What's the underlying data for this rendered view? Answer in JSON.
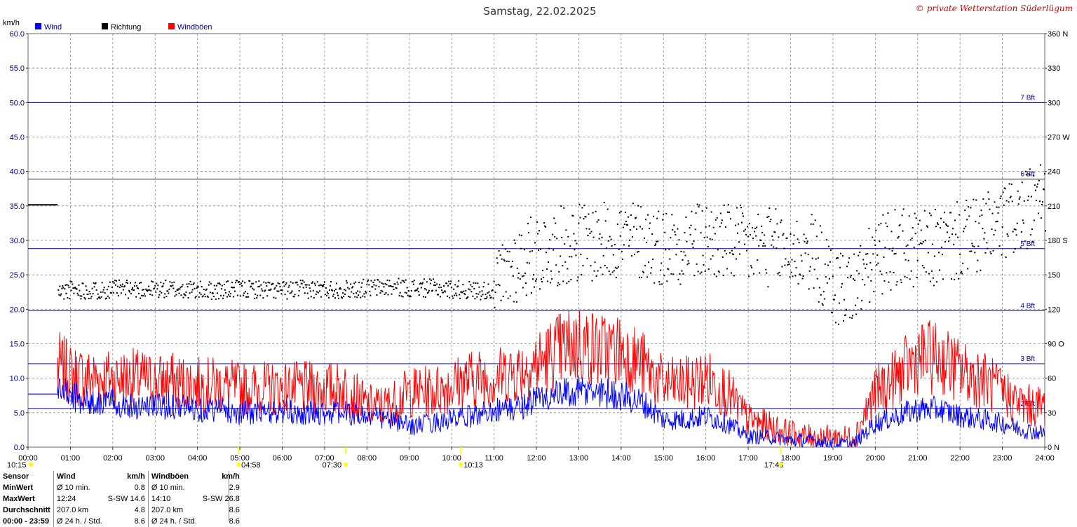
{
  "header": {
    "title": "Samstag, 22.02.2025",
    "copyright": "© private Wetterstation Süderlügum",
    "left_unit": "km/h"
  },
  "legend": [
    {
      "label": "Wind",
      "color": "#0000ff"
    },
    {
      "label": "Richtung",
      "color": "#000000"
    },
    {
      "label": "Windböen",
      "color": "#ff0000"
    }
  ],
  "colors": {
    "wind": "#0000ff",
    "gust": "#ff0000",
    "direction": "#000000",
    "bft": "#0000a0",
    "grid": "#888888",
    "marker": "#ffff00"
  },
  "chart_data": {
    "type": "line",
    "title": "Samstag, 22.02.2025",
    "ylabel": "km/h",
    "ylim": [
      0,
      60
    ],
    "y2lim": [
      0,
      360
    ],
    "xlim_hours": [
      0,
      24
    ],
    "grid": true,
    "y_ticks": [
      "0.0",
      "5.0",
      "10.0",
      "15.0",
      "20.0",
      "25.0",
      "30.0",
      "35.0",
      "40.0",
      "45.0",
      "50.0",
      "55.0",
      "60.0"
    ],
    "y2_ticks": [
      "0 N",
      "30",
      "60",
      "90 O",
      "120",
      "150",
      "180 S",
      "210",
      "240",
      "270 W",
      "300",
      "330",
      "360 N"
    ],
    "x_ticks": [
      "00:00",
      "01:00",
      "02:00",
      "03:00",
      "04:00",
      "05:00",
      "06:00",
      "07:00",
      "08:00",
      "09:00",
      "10:00",
      "11:00",
      "12:00",
      "13:00",
      "14:00",
      "15:00",
      "16:00",
      "17:00",
      "18:00",
      "19:00",
      "20:00",
      "21:00",
      "22:00",
      "23:00",
      "24:00"
    ],
    "beaufort": [
      {
        "label": "2 Bft",
        "kmh": 5.6
      },
      {
        "label": "3 Bft",
        "kmh": 12.1
      },
      {
        "label": "4 Bft",
        "kmh": 19.8
      },
      {
        "label": "5 Bft",
        "kmh": 28.8
      },
      {
        "label": "6 Bft",
        "kmh": 38.9
      },
      {
        "label": "7 Bft",
        "kmh": 50.0
      }
    ],
    "series": [
      {
        "name": "Wind",
        "x": [
          0,
          0.7,
          1,
          1.5,
          2,
          2.5,
          3,
          3.5,
          4,
          4.5,
          5,
          5.5,
          6,
          6.5,
          7,
          7.5,
          8,
          8.5,
          9,
          9.5,
          10,
          10.5,
          11,
          11.5,
          12,
          12.5,
          13,
          13.5,
          14,
          14.5,
          15,
          15.5,
          16,
          16.5,
          17,
          17.5,
          18,
          18.5,
          19,
          19.5,
          20,
          20.5,
          21,
          21.5,
          22,
          22.5,
          23,
          23.5,
          24
        ],
        "values": [
          7.7,
          8.5,
          7.5,
          6.5,
          6.5,
          6,
          6,
          6,
          5.5,
          5.5,
          5,
          5,
          5,
          5,
          5,
          5,
          4.5,
          4,
          3,
          3.5,
          4,
          4.5,
          5.5,
          5.5,
          7,
          7.5,
          8,
          8,
          7.5,
          6.5,
          4,
          4,
          4.5,
          3.5,
          1.5,
          1.5,
          1,
          1,
          0.5,
          0.5,
          3.5,
          4.5,
          5.5,
          5.5,
          4.5,
          4,
          3.5,
          2.5,
          2
        ]
      },
      {
        "name": "Windböen",
        "x": [
          0,
          0.7,
          1,
          1.5,
          2,
          2.5,
          3,
          3.5,
          4,
          4.5,
          5,
          5.5,
          6,
          6.5,
          7,
          7.5,
          8,
          8.5,
          9,
          9.5,
          10,
          10.5,
          11,
          11.5,
          12,
          12.5,
          13,
          13.5,
          14,
          14.5,
          15,
          15.5,
          16,
          16.5,
          17,
          17.5,
          18,
          18.5,
          19,
          19.5,
          20,
          20.5,
          21,
          21.5,
          22,
          22.5,
          23,
          23.5,
          24
        ],
        "values": [
          7.7,
          12,
          10.5,
          10,
          10,
          10,
          9.5,
          9.5,
          9,
          9,
          8.5,
          8.5,
          8.5,
          8.5,
          8.5,
          8.5,
          6,
          6,
          8,
          8,
          9,
          10,
          10,
          11,
          12,
          14,
          15,
          14,
          14,
          12,
          9,
          9,
          10,
          8,
          4,
          3,
          2,
          1.5,
          1.5,
          1.5,
          8,
          10,
          13,
          13,
          11,
          10,
          8,
          6,
          6
        ]
      },
      {
        "name": "Richtung",
        "x": [
          0,
          0.7,
          1,
          1.5,
          2,
          2.5,
          3,
          3.5,
          4,
          4.5,
          5,
          5.5,
          6,
          6.5,
          7,
          7.5,
          8,
          8.5,
          9,
          9.5,
          10,
          10.5,
          11,
          11.5,
          12,
          12.5,
          13,
          13.5,
          14,
          14.5,
          15,
          15.5,
          16,
          16.5,
          17,
          17.5,
          18,
          18.5,
          19,
          19.5,
          20,
          20.5,
          21,
          21.5,
          22,
          22.5,
          23,
          23.5,
          24
        ],
        "values": [
          211,
          135,
          138,
          137,
          138,
          138,
          138,
          138,
          137,
          137,
          138,
          138,
          137,
          138,
          138,
          138,
          139,
          140,
          139,
          139,
          138,
          137,
          137,
          160,
          170,
          175,
          180,
          178,
          182,
          180,
          175,
          178,
          180,
          178,
          175,
          175,
          170,
          170,
          140,
          140,
          165,
          175,
          170,
          175,
          180,
          185,
          195,
          205,
          215
        ]
      }
    ],
    "markers": [
      {
        "label": "10:15",
        "hour": 10.25
      },
      {
        "label": "04:58",
        "hour": 4.967
      },
      {
        "label": "07:30",
        "hour": 7.5
      },
      {
        "label": "10:13",
        "hour": 10.217
      },
      {
        "label": "17:46",
        "hour": 17.767
      }
    ]
  },
  "stats": {
    "header": [
      "Sensor",
      "Wind",
      "km/h",
      "Windböen",
      "km/h"
    ],
    "rows": [
      [
        "MinWert",
        "Ø 10 min.",
        "0.8",
        "Ø 10 min.",
        "2.9"
      ],
      [
        "MaxWert",
        "12:24",
        "S-SW 14.6",
        "14:10",
        "S-SW 26.8"
      ],
      [
        "Durchschnitt",
        "207.0 km",
        "4.8",
        "207.0 km",
        "8.6"
      ],
      [
        "00:00 - 23:59",
        "Ø 24 h. / Std.",
        "8.6",
        "Ø 24 h. / Std.",
        "8.6"
      ]
    ]
  }
}
